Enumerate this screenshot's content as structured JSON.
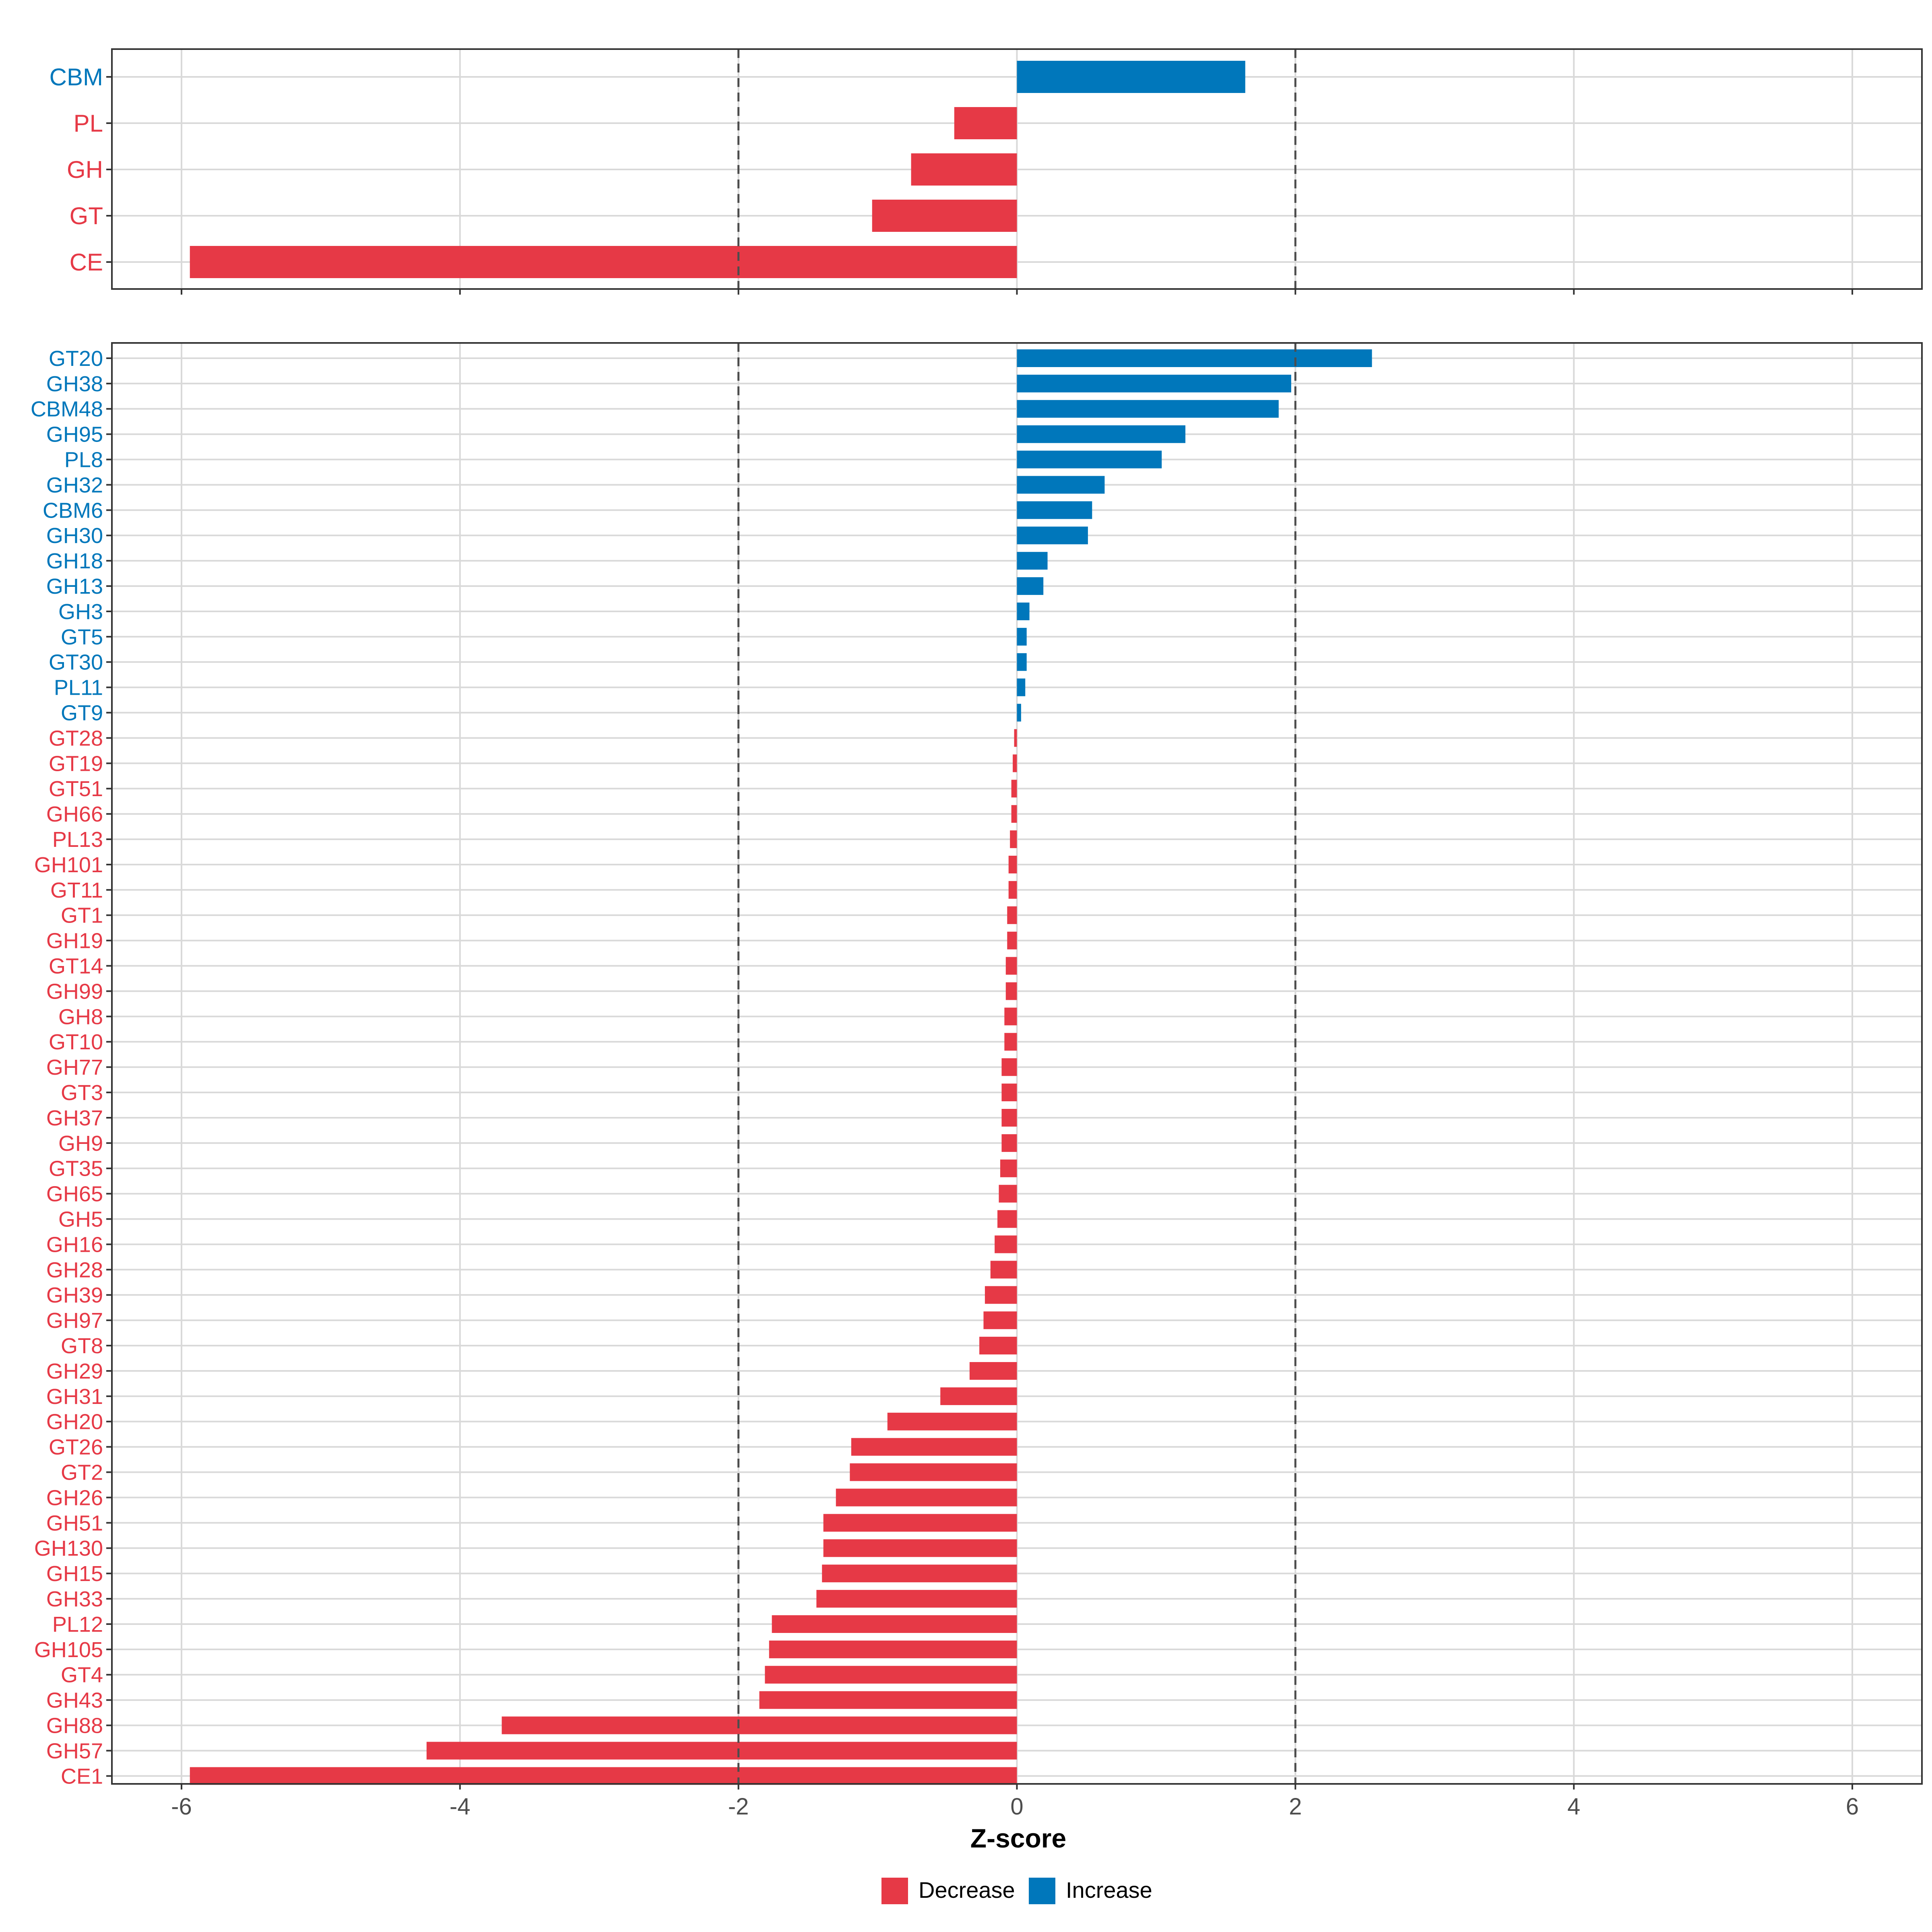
{
  "chart_data": [
    {
      "type": "bar",
      "orientation": "horizontal",
      "panel": "top",
      "categories": [
        "CBM",
        "PL",
        "GH",
        "GT",
        "CE"
      ],
      "values": [
        1.64,
        -0.45,
        -0.76,
        -1.04,
        -5.94
      ],
      "xlim": [
        -6.5,
        6.5
      ],
      "xticks": [
        -6,
        -4,
        -2,
        0,
        2,
        4,
        6
      ],
      "threshold_lines": [
        -2,
        2
      ],
      "grid": true,
      "xlabel": "",
      "ylabel": ""
    },
    {
      "type": "bar",
      "orientation": "horizontal",
      "panel": "bottom",
      "categories": [
        "GT20",
        "GH38",
        "CBM48",
        "GH95",
        "PL8",
        "GH32",
        "CBM6",
        "GH30",
        "GH18",
        "GH13",
        "GH3",
        "GT5",
        "GT30",
        "PL11",
        "GT9",
        "GT28",
        "GT19",
        "GT51",
        "GH66",
        "PL13",
        "GH101",
        "GT11",
        "GT1",
        "GH19",
        "GT14",
        "GH99",
        "GH8",
        "GT10",
        "GH77",
        "GT3",
        "GH37",
        "GH9",
        "GT35",
        "GH65",
        "GH5",
        "GH16",
        "GH28",
        "GH39",
        "GH97",
        "GT8",
        "GH29",
        "GH31",
        "GH20",
        "GT26",
        "GT2",
        "GH26",
        "GH51",
        "GH130",
        "GH15",
        "GH33",
        "PL12",
        "GH105",
        "GT4",
        "GH43",
        "GH88",
        "GH57",
        "CE1"
      ],
      "values": [
        2.55,
        1.97,
        1.88,
        1.21,
        1.04,
        0.63,
        0.54,
        0.51,
        0.22,
        0.19,
        0.09,
        0.07,
        0.07,
        0.06,
        0.03,
        -0.02,
        -0.03,
        -0.04,
        -0.04,
        -0.05,
        -0.06,
        -0.06,
        -0.07,
        -0.07,
        -0.08,
        -0.08,
        -0.09,
        -0.09,
        -0.11,
        -0.11,
        -0.11,
        -0.11,
        -0.12,
        -0.13,
        -0.14,
        -0.16,
        -0.19,
        -0.23,
        -0.24,
        -0.27,
        -0.34,
        -0.55,
        -0.93,
        -1.19,
        -1.2,
        -1.3,
        -1.39,
        -1.39,
        -1.4,
        -1.44,
        -1.76,
        -1.78,
        -1.81,
        -1.85,
        -3.7,
        -4.24,
        -5.94
      ],
      "xlim": [
        -6.5,
        6.5
      ],
      "xticks": [
        -6,
        -4,
        -2,
        0,
        2,
        4,
        6
      ],
      "xtick_labels": [
        "-6",
        "-4",
        "-2",
        "0",
        "2",
        "4",
        "6"
      ],
      "threshold_lines": [
        -2,
        2
      ],
      "grid": true,
      "xlabel": "Z-score",
      "ylabel": ""
    }
  ],
  "legend": {
    "position": "bottom",
    "entries": [
      {
        "label": "Decrease",
        "color": "#E63946"
      },
      {
        "label": "Increase",
        "color": "#0077BB"
      }
    ]
  },
  "colors": {
    "decrease": "#E63946",
    "increase": "#0077BB",
    "grid": "#D9D9D9",
    "threshold": "#4D4D4D",
    "axis_text": "#4D4D4D"
  }
}
